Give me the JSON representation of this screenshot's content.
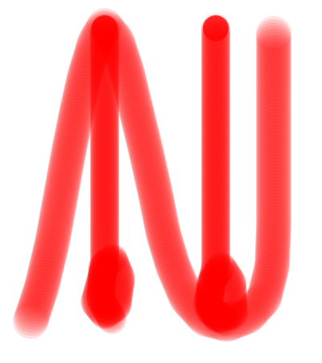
{
  "brush": {
    "color": "#ff0000",
    "stamp_opacity": 0.12
  },
  "strokes": [
    {
      "name": "stroke-long-curve"
    },
    {
      "name": "stroke-left-vertical"
    },
    {
      "name": "stroke-right-vertical"
    },
    {
      "name": "stroke-far-right-hook"
    }
  ]
}
